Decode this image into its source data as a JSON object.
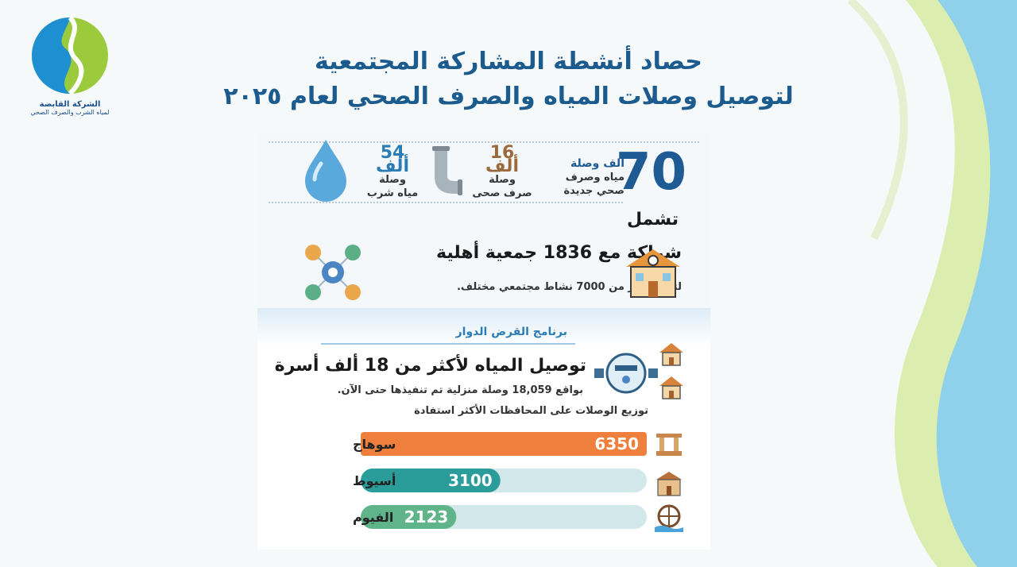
{
  "logo": {
    "name": "الشركة القابضة",
    "subtitle": "لمياه الشرب والصرف الصحي"
  },
  "title": {
    "line1": "حصاد أنشطة المشاركة المجتمعية",
    "line2": "لتوصيل وصلات المياه والصرف الصحي لعام ٢٠٢٥"
  },
  "stats": {
    "total_value": "70",
    "total_unit": "ألف وصلة",
    "total_desc1": "مياه وصرف",
    "total_desc2": "صحي جديدة",
    "sewer_value": "16 ألف",
    "sewer_desc1": "وصلة",
    "sewer_desc2": "صرف صحى",
    "water_value": "54 ألف",
    "water_desc1": "وصلة",
    "water_desc2": "مياه شرب",
    "includes": "تشمل"
  },
  "partnership": {
    "title": "شراكة مع 1836 جمعية أهلية",
    "subtitle": "لتنفيذ أكثر من 7000 نشاط مجتمعي مختلف."
  },
  "loan": {
    "program": "برنامج القرض الدوار",
    "title": "توصيل المياه لأكثر من 18 ألف أسرة",
    "subtitle": "بواقع 18,059 وصلة منزلية تم تنفيذها حتى الآن.",
    "dist_title": "توزيع الوصلات على المحافظات الأكثر استفادة"
  },
  "colors": {
    "bar1": "#ef7f3c",
    "bar2": "#2a9d9b",
    "bar3": "#5fb48a",
    "track": "#d3e8ea"
  },
  "chart_data": {
    "type": "bar",
    "orientation": "horizontal",
    "title": "توزيع الوصلات على المحافظات الأكثر استفادة",
    "categories": [
      "سوهاج",
      "أسيوط",
      "الفيوم"
    ],
    "values": [
      6350,
      3100,
      2123
    ],
    "value_labels": [
      "6350",
      "3100",
      "2123"
    ],
    "xlim": [
      0,
      6350
    ],
    "grid": false
  }
}
